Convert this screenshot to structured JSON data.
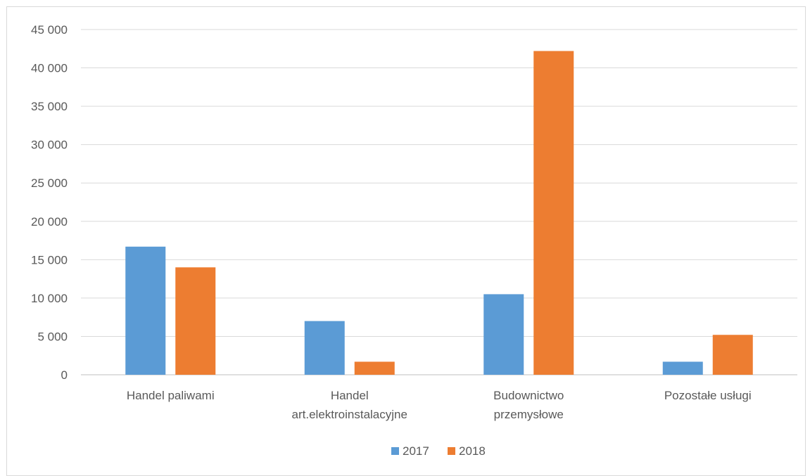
{
  "chart_data": {
    "type": "bar",
    "categories": [
      [
        "Handel paliwami"
      ],
      [
        "Handel",
        "art.elektroinstalacyjne"
      ],
      [
        "Budownictwo",
        "przemysłowe"
      ],
      [
        "Pozostałe usługi"
      ]
    ],
    "series": [
      {
        "name": "2017",
        "color": "#5B9BD5",
        "values": [
          16700,
          7000,
          10500,
          1700
        ]
      },
      {
        "name": "2018",
        "color": "#ED7D31",
        "values": [
          14000,
          1700,
          42200,
          5200
        ]
      }
    ],
    "ylim": [
      0,
      45000
    ],
    "yticks": [
      "0",
      "5 000",
      "10 000",
      "15 000",
      "20 000",
      "25 000",
      "30 000",
      "35 000",
      "40 000",
      "45 000"
    ],
    "grid": true,
    "legend_position": "bottom"
  }
}
